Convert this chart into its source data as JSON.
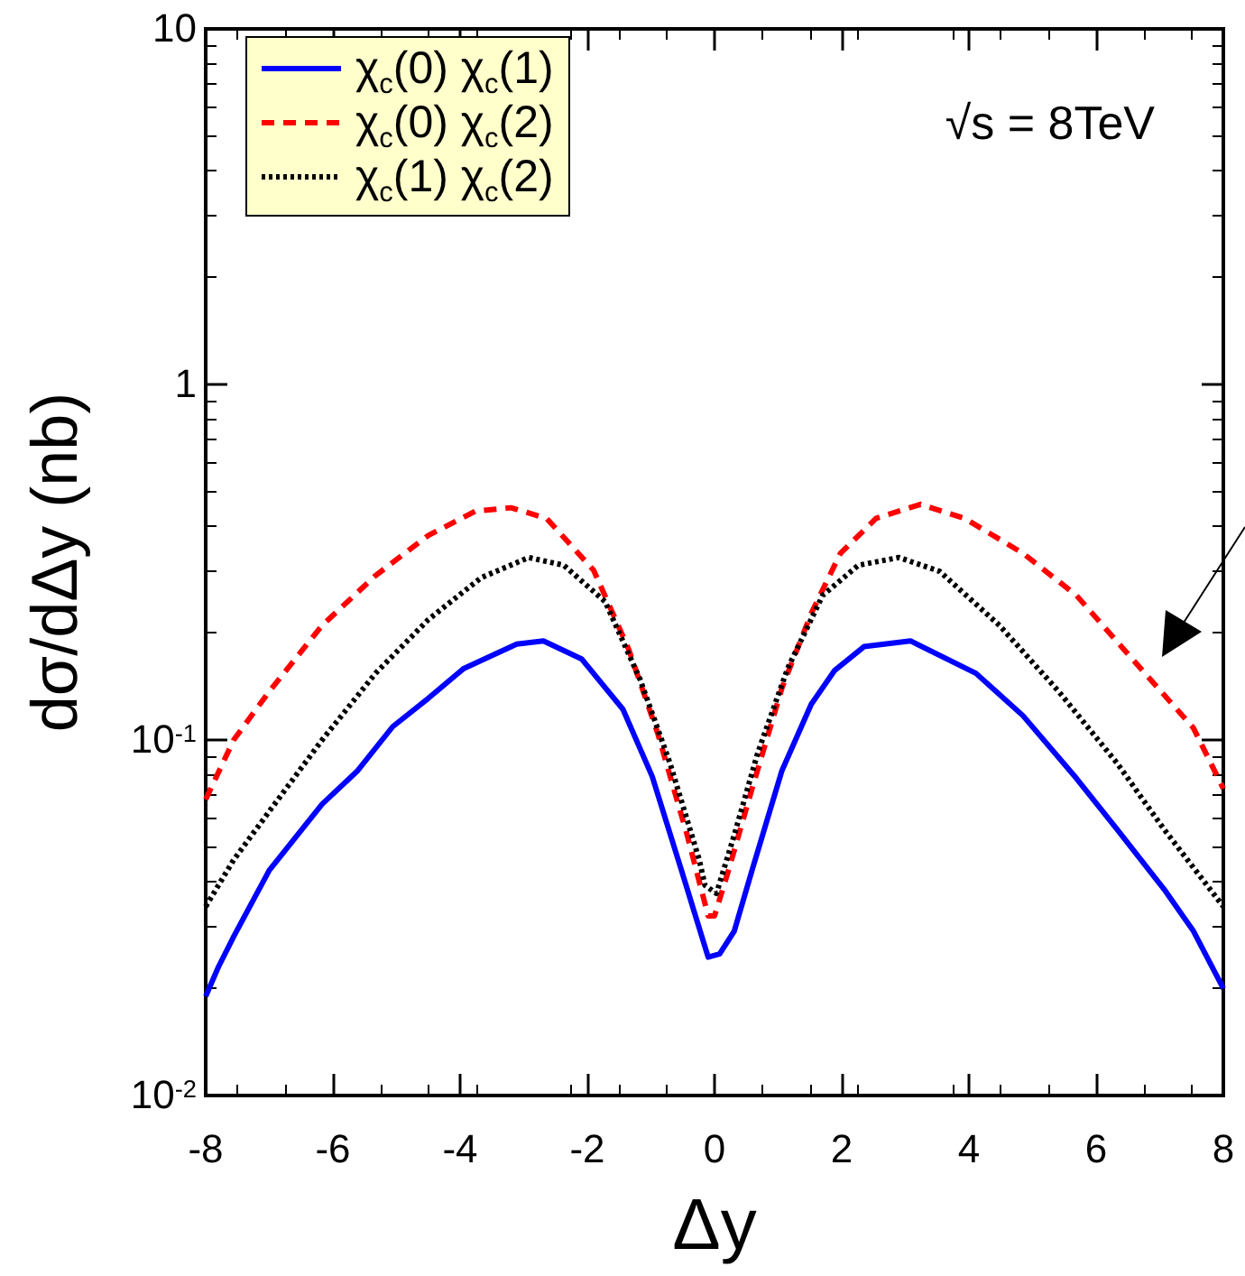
{
  "chart_data": {
    "type": "line",
    "xlabel": "Δy",
    "ylabel": "dσ/dΔy (nb)",
    "log": "y",
    "legend": "top left",
    "marker": "none",
    "grid": false,
    "xlim": [
      -8,
      8
    ],
    "xticks": [
      -8,
      -6,
      -4,
      -2,
      0,
      2,
      4,
      6,
      8
    ],
    "ylim": [
      0.01,
      10
    ],
    "yticks": [
      {
        "value": 0.01,
        "label": "10$^{-2}$"
      },
      {
        "value": 0.1,
        "label": "10$^{-1}$"
      },
      1,
      10
    ],
    "annotations": [
      "√s = 8TeV"
    ],
    "series": [
      {
        "name": "χ$_{c}$(0) χ$_{c}$(1)",
        "color": "#0000ff",
        "line_style": "solid",
        "x": [
          -8,
          -7.8,
          -7.56,
          -7,
          -6.17,
          -5.61,
          -5.06,
          -4.5,
          -3.94,
          -3.11,
          -2.69,
          -2.09,
          -1.44,
          -0.98,
          -0.52,
          -0.1,
          0.08,
          0.31,
          0.59,
          1.06,
          1.52,
          1.89,
          2.35,
          3.08,
          4.11,
          4.85,
          5.69,
          6.33,
          7.07,
          7.53,
          8
        ],
        "values": [
          0.019,
          0.023,
          0.028,
          0.043,
          0.066,
          0.082,
          0.109,
          0.131,
          0.159,
          0.186,
          0.19,
          0.169,
          0.122,
          0.079,
          0.043,
          0.0245,
          0.025,
          0.029,
          0.043,
          0.082,
          0.126,
          0.157,
          0.183,
          0.19,
          0.154,
          0.117,
          0.078,
          0.056,
          0.038,
          0.029,
          0.02
        ]
      },
      {
        "name": "χ$_{c}$(0) χ$_{c}$(2)",
        "color": "#ff0000",
        "line_style": "dashed",
        "x": [
          -8,
          -7.56,
          -7,
          -6.17,
          -5.33,
          -4.5,
          -3.76,
          -3.2,
          -2.64,
          -1.9,
          -1.35,
          -0.89,
          -0.43,
          -0.1,
          0,
          0.22,
          0.59,
          1.06,
          1.52,
          1.98,
          2.54,
          3.24,
          3.93,
          4.85,
          5.69,
          6.7,
          7.53,
          8
        ],
        "values": [
          0.068,
          0.1,
          0.137,
          0.21,
          0.29,
          0.376,
          0.44,
          0.45,
          0.42,
          0.3,
          0.18,
          0.104,
          0.054,
          0.032,
          0.032,
          0.043,
          0.073,
          0.14,
          0.227,
          0.335,
          0.42,
          0.46,
          0.42,
          0.335,
          0.255,
          0.159,
          0.108,
          0.073
        ]
      },
      {
        "name": "χ$_{c}$(1) χ$_{c}$(2)",
        "color": "#000000",
        "line_style": "dotted",
        "x": [
          -8,
          -7.56,
          -7,
          -6.17,
          -5.33,
          -4.5,
          -3.67,
          -2.92,
          -2.37,
          -1.72,
          -1.17,
          -0.7,
          -0.24,
          -0.15,
          0.03,
          0.31,
          0.68,
          1.15,
          1.7,
          2.26,
          2.9,
          3.54,
          4.48,
          5.41,
          6.33,
          7.07,
          8
        ],
        "values": [
          0.034,
          0.046,
          0.063,
          0.1,
          0.154,
          0.218,
          0.286,
          0.326,
          0.31,
          0.245,
          0.148,
          0.086,
          0.046,
          0.039,
          0.037,
          0.054,
          0.092,
          0.159,
          0.255,
          0.31,
          0.326,
          0.298,
          0.21,
          0.137,
          0.086,
          0.056,
          0.034
        ]
      }
    ]
  }
}
